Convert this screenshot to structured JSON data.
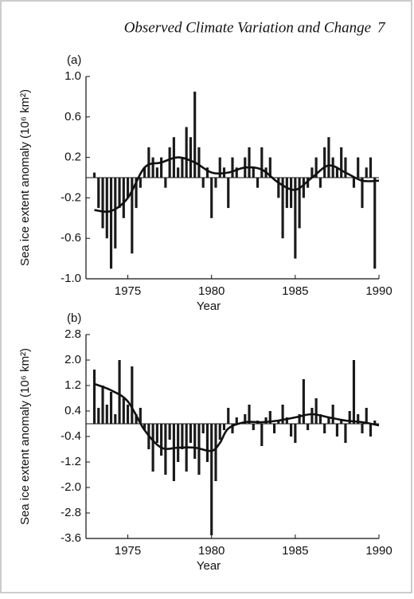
{
  "header": "Observed Climate Variation and Change",
  "page_number": "7",
  "chart_data": [
    {
      "type": "bar",
      "panel": "(a)",
      "xlabel": "Year",
      "ylabel": "Sea ice extent anomaly (10⁶ km²)",
      "xlim": [
        1972.5,
        1990
      ],
      "xticks": [
        1975,
        1980,
        1985,
        1990
      ],
      "ylim": [
        -1,
        1
      ],
      "yticks": [
        {
          "value": -1,
          "label": "-1.0"
        },
        -0.6,
        -0.2,
        0.2,
        0.6,
        {
          "value": 1,
          "label": "1.0"
        }
      ],
      "series": [
        {
          "type": "bar",
          "color": "#1a1a1a",
          "x": [
            1973,
            1973.25,
            1973.5,
            1973.75,
            1974,
            1974.25,
            1974.5,
            1974.75,
            1975,
            1975.25,
            1975.5,
            1975.75,
            1976,
            1976.25,
            1976.5,
            1976.75,
            1977,
            1977.25,
            1977.5,
            1977.75,
            1978,
            1978.25,
            1978.5,
            1978.75,
            1979,
            1979.25,
            1979.5,
            1979.75,
            1980,
            1980.25,
            1980.5,
            1980.75,
            1981,
            1981.25,
            1981.5,
            1981.75,
            1982,
            1982.25,
            1982.5,
            1982.75,
            1983,
            1983.25,
            1983.5,
            1983.75,
            1984,
            1984.25,
            1984.5,
            1984.75,
            1985,
            1985.25,
            1985.5,
            1985.75,
            1986,
            1986.25,
            1986.5,
            1986.75,
            1987,
            1987.25,
            1987.5,
            1987.75,
            1988,
            1988.25,
            1988.5,
            1988.75,
            1989,
            1989.25,
            1989.5,
            1989.75
          ],
          "values": [
            0.05,
            -0.3,
            -0.5,
            -0.6,
            -0.9,
            -0.7,
            -0.3,
            -0.4,
            -0.2,
            -0.75,
            -0.3,
            -0.1,
            0.1,
            0.3,
            0.2,
            0.1,
            0.2,
            -0.1,
            0.3,
            0.4,
            0.1,
            0.2,
            0.5,
            0.4,
            0.85,
            0.3,
            -0.1,
            0.1,
            -0.4,
            -0.1,
            0.2,
            0.1,
            -0.3,
            0.2,
            0.1,
            0.0,
            0.2,
            0.3,
            0.1,
            -0.1,
            0.3,
            0.1,
            0.2,
            0.0,
            -0.2,
            -0.6,
            -0.3,
            -0.3,
            -0.8,
            -0.5,
            -0.2,
            -0.1,
            0.1,
            0.2,
            -0.1,
            0.3,
            0.4,
            0.2,
            0.1,
            0.3,
            0.2,
            0.0,
            -0.1,
            0.2,
            -0.3,
            0.1,
            0.2,
            -0.9
          ]
        },
        {
          "type": "line",
          "color": "#111111",
          "x": [
            1973,
            1974,
            1975,
            1976,
            1977,
            1978,
            1979,
            1980,
            1981,
            1982,
            1983,
            1984,
            1985,
            1986,
            1987,
            1988,
            1989,
            1990
          ],
          "values": [
            -0.32,
            -0.33,
            -0.2,
            0.1,
            0.15,
            0.2,
            0.15,
            0.05,
            0.05,
            0.1,
            0.08,
            -0.05,
            -0.12,
            0.0,
            0.12,
            0.05,
            -0.03,
            -0.03
          ]
        }
      ]
    },
    {
      "type": "bar",
      "panel": "(b)",
      "xlabel": "Year",
      "ylabel": "Sea ice extent anomaly (10⁶ km²)",
      "xlim": [
        1972.5,
        1990
      ],
      "xticks": [
        1975,
        1980,
        1985,
        1990
      ],
      "ylim": [
        -3.6,
        2.8
      ],
      "yticks": [
        -3.6,
        -2.8,
        {
          "value": -2,
          "label": "-2.0"
        },
        -1.2,
        -0.4,
        0.4,
        1.2,
        {
          "value": 2,
          "label": "2.0"
        },
        2.8
      ],
      "series": [
        {
          "type": "bar",
          "color": "#1a1a1a",
          "x": [
            1973,
            1973.25,
            1973.5,
            1973.75,
            1974,
            1974.25,
            1974.5,
            1974.75,
            1975,
            1975.25,
            1975.5,
            1975.75,
            1976,
            1976.25,
            1976.5,
            1976.75,
            1977,
            1977.25,
            1977.5,
            1977.75,
            1978,
            1978.25,
            1978.5,
            1978.75,
            1979,
            1979.25,
            1979.5,
            1979.75,
            1980,
            1980.25,
            1980.5,
            1980.75,
            1981,
            1981.25,
            1981.5,
            1981.75,
            1982,
            1982.25,
            1982.5,
            1982.75,
            1983,
            1983.25,
            1983.5,
            1983.75,
            1984,
            1984.25,
            1984.5,
            1984.75,
            1985,
            1985.25,
            1985.5,
            1985.75,
            1986,
            1986.25,
            1986.5,
            1986.75,
            1987,
            1987.25,
            1987.5,
            1987.75,
            1988,
            1988.25,
            1988.5,
            1988.75,
            1989,
            1989.25,
            1989.5,
            1989.75
          ],
          "values": [
            1.7,
            0.5,
            1.2,
            0.6,
            1.0,
            0.3,
            2.0,
            0.8,
            0.6,
            1.8,
            0.3,
            0.5,
            -0.2,
            -0.8,
            -1.5,
            -0.6,
            -1.0,
            -1.6,
            -0.5,
            -1.8,
            -1.2,
            -0.8,
            -1.5,
            -0.6,
            -1.1,
            -1.6,
            -0.3,
            -1.2,
            -3.5,
            -1.8,
            -0.5,
            -0.2,
            0.5,
            -0.3,
            0.2,
            0.0,
            0.3,
            0.6,
            -0.2,
            0.1,
            -0.7,
            0.2,
            0.4,
            -0.3,
            0.1,
            0.6,
            0.2,
            -0.4,
            -0.6,
            0.3,
            1.4,
            -0.2,
            0.5,
            0.8,
            0.3,
            -0.3,
            0.2,
            0.6,
            -0.4,
            0.1,
            -0.6,
            0.4,
            2.0,
            0.3,
            -0.3,
            0.5,
            -0.4,
            0.1
          ]
        },
        {
          "type": "line",
          "color": "#111111",
          "x": [
            1973,
            1974,
            1975,
            1976,
            1977,
            1978,
            1979,
            1980,
            1980.5,
            1981,
            1982,
            1983,
            1984,
            1985,
            1986,
            1987,
            1988,
            1989,
            1990
          ],
          "values": [
            1.25,
            1.05,
            0.7,
            -0.2,
            -0.75,
            -0.75,
            -0.75,
            -0.85,
            -0.6,
            -0.15,
            0.05,
            0.05,
            0.1,
            0.2,
            0.3,
            0.2,
            0.1,
            0.05,
            -0.05
          ]
        }
      ]
    }
  ]
}
